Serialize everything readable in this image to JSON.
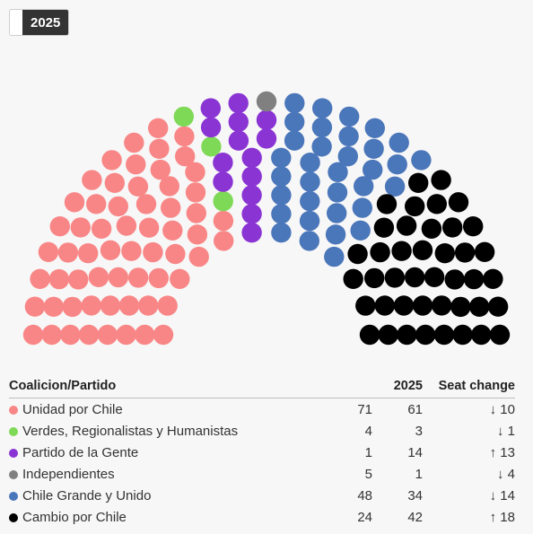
{
  "toggle": {
    "year_label": "2025"
  },
  "table": {
    "headers": {
      "party": "Coalicion/Partido",
      "prev": "",
      "current": "2025",
      "change": "Seat change"
    }
  },
  "chart_data": {
    "type": "parliament",
    "total_seats": 155,
    "parties": [
      {
        "name": "Unidad por Chile",
        "color": "#f98686",
        "prev_seats": 71,
        "seats": 61,
        "change": "↓ 10",
        "direction": "down"
      },
      {
        "name": "Verdes, Regionalistas y Humanistas",
        "color": "#7ed957",
        "prev_seats": 4,
        "seats": 3,
        "change": "↓ 1",
        "direction": "down"
      },
      {
        "name": "Partido de la Gente",
        "color": "#8a34d3",
        "prev_seats": 1,
        "seats": 14,
        "change": "↑ 13",
        "direction": "up"
      },
      {
        "name": "Independientes",
        "color": "#808080",
        "prev_seats": 5,
        "seats": 1,
        "change": "↓ 4",
        "direction": "down"
      },
      {
        "name": "Chile Grande y Unido",
        "color": "#4a76ba",
        "prev_seats": 48,
        "seats": 34,
        "change": "↓ 14",
        "direction": "down"
      },
      {
        "name": "Cambio por Chile",
        "color": "#000000",
        "prev_seats": 24,
        "seats": 42,
        "change": "↑ 18",
        "direction": "up"
      }
    ]
  }
}
